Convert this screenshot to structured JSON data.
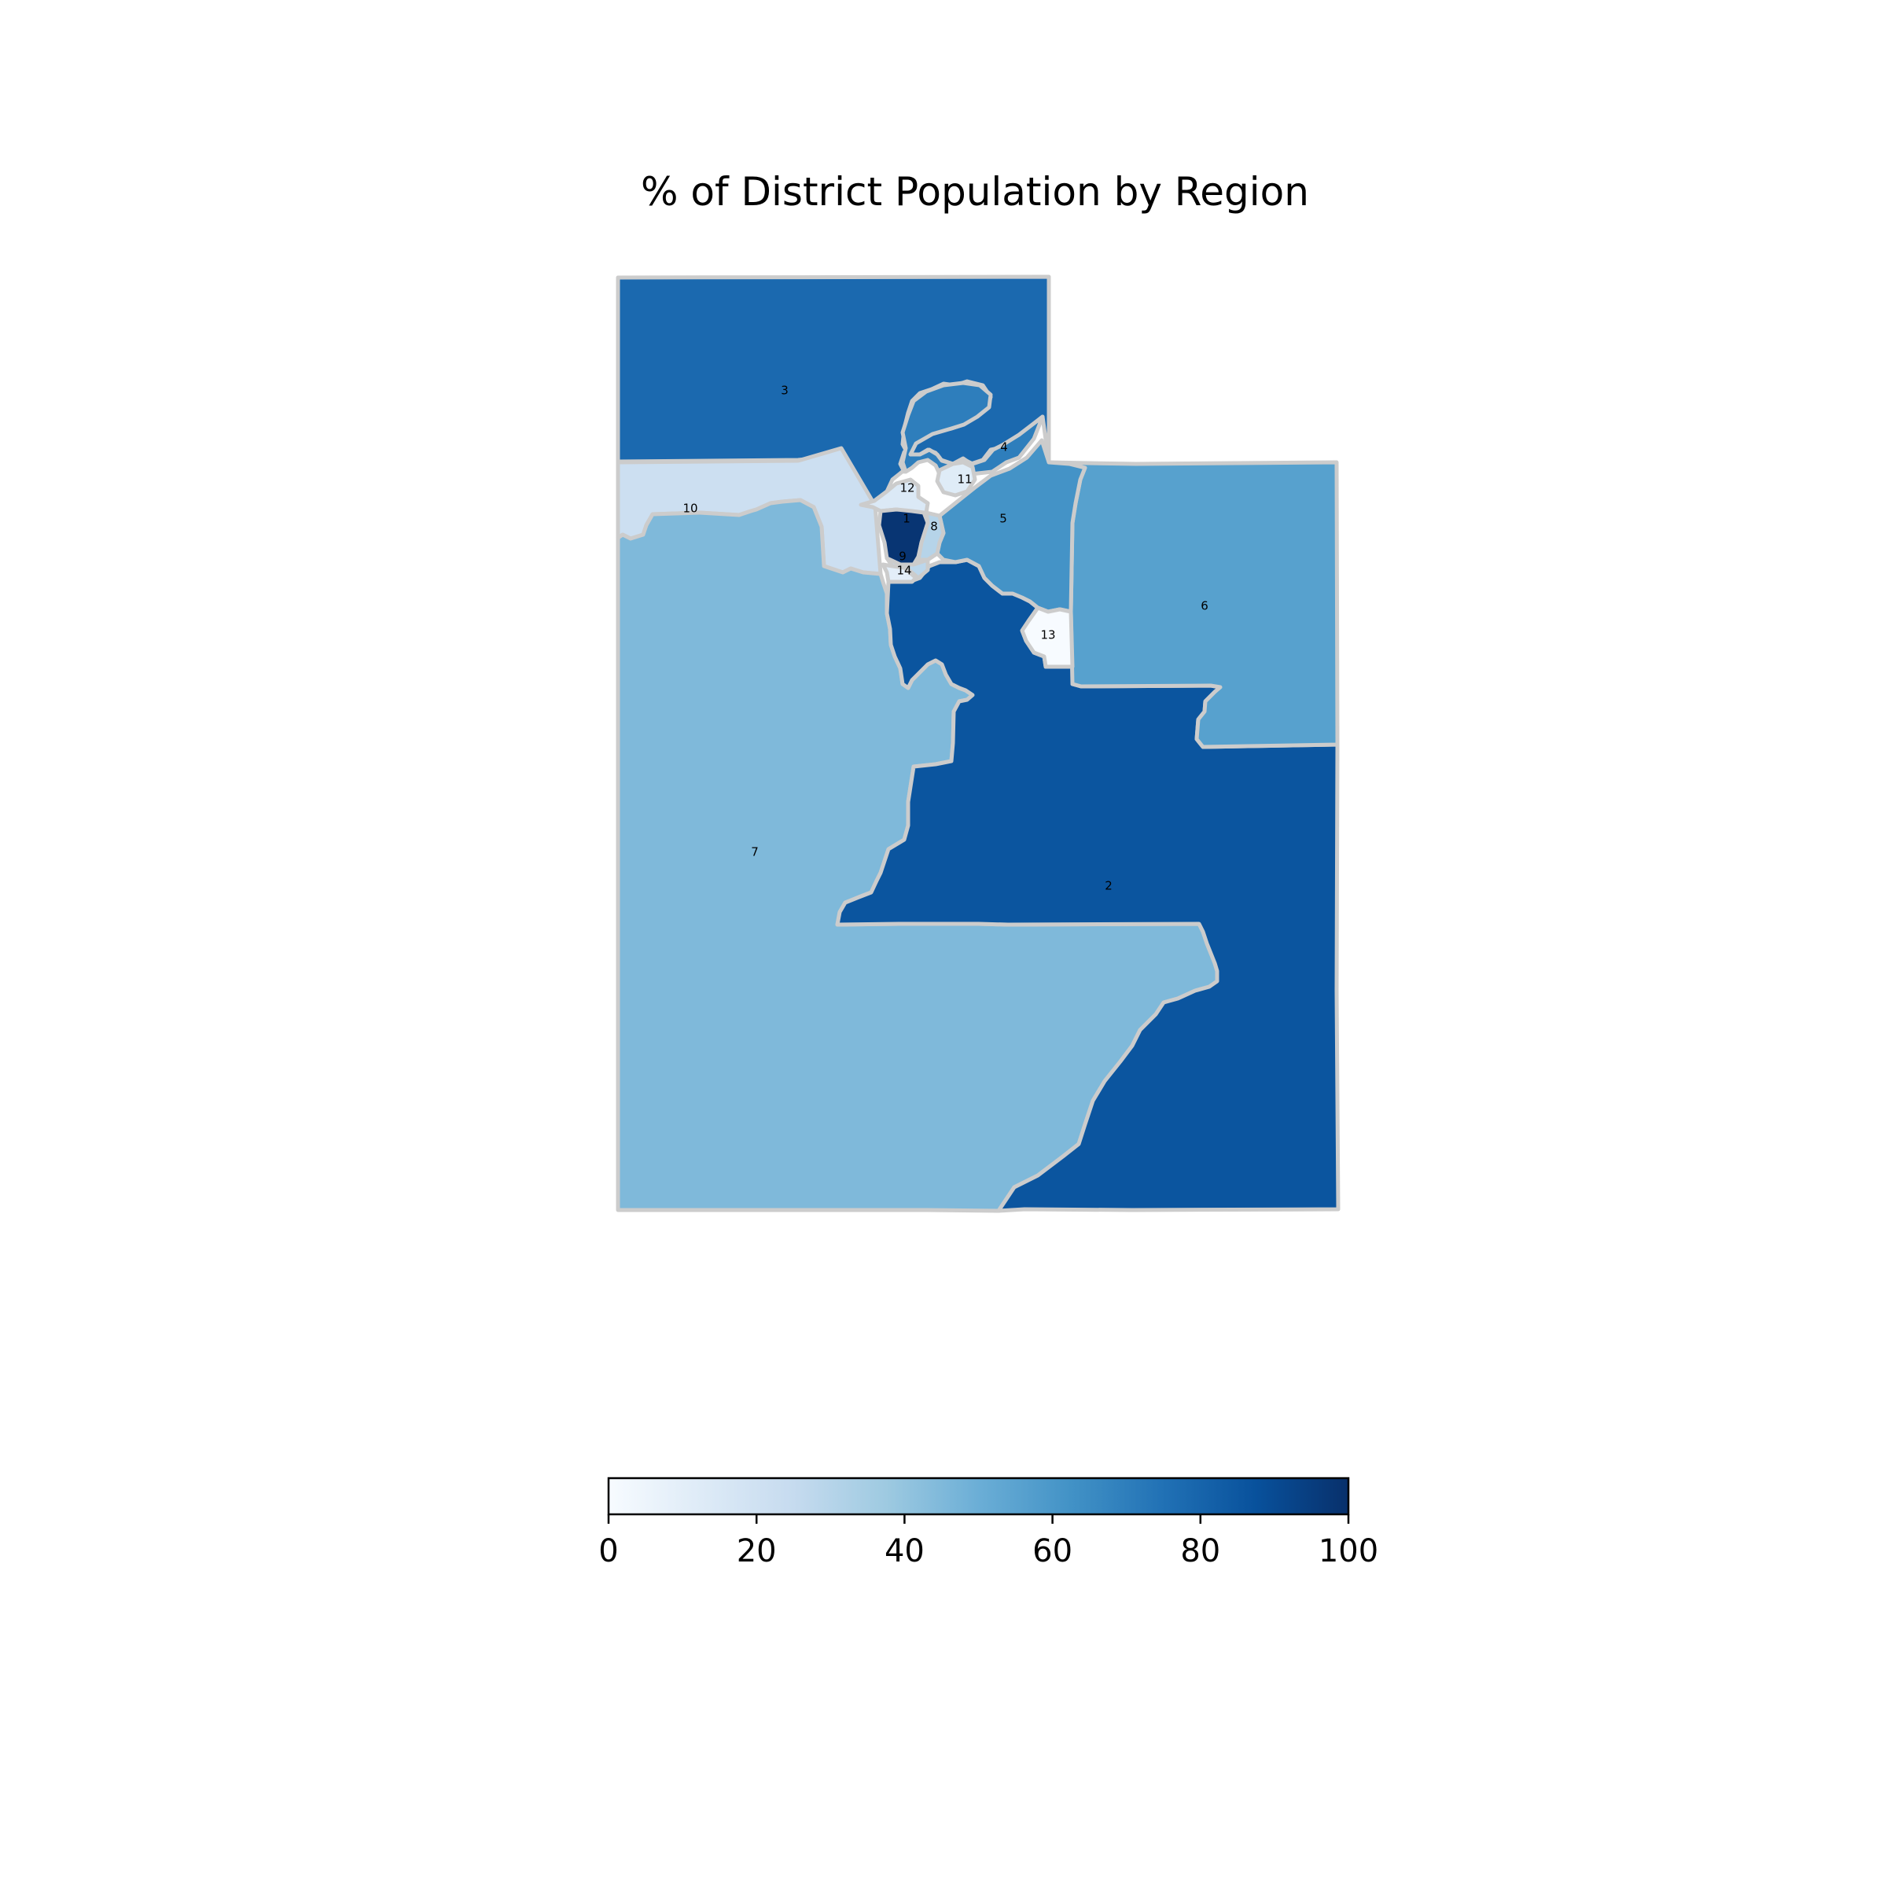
{
  "title": "% of District Population by Region",
  "colorbar": {
    "min": 0,
    "max": 100,
    "ticks": [
      "0",
      "20",
      "40",
      "60",
      "80",
      "100"
    ],
    "palette": "Blues",
    "colors": [
      "#f7fbff",
      "#deebf7",
      "#c6dbef",
      "#9ecae1",
      "#6baed6",
      "#4292c6",
      "#2171b5",
      "#08519c",
      "#08306b"
    ]
  },
  "region_border_color": "#cccccc",
  "regions": [
    {
      "label": "1",
      "value": 98
    },
    {
      "label": "2",
      "value": 86
    },
    {
      "label": "3",
      "value": 78
    },
    {
      "label": "4",
      "value": 70
    },
    {
      "label": "5",
      "value": 62
    },
    {
      "label": "6",
      "value": 56
    },
    {
      "label": "7",
      "value": 45
    },
    {
      "label": "8",
      "value": 30
    },
    {
      "label": "9",
      "value": 28
    },
    {
      "label": "10",
      "value": 22
    },
    {
      "label": "11",
      "value": 12
    },
    {
      "label": "12",
      "value": 14
    },
    {
      "label": "13",
      "value": 0
    },
    {
      "label": "14",
      "value": 10
    }
  ]
}
